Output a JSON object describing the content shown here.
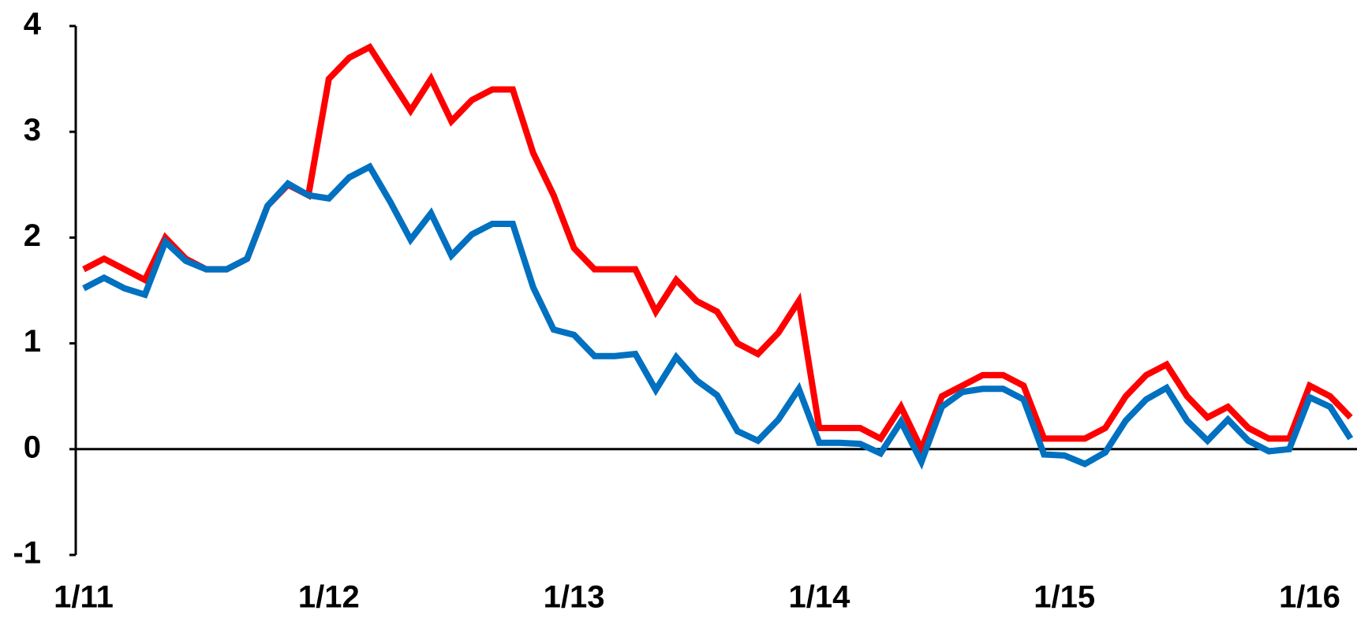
{
  "chart_data": {
    "type": "line",
    "categories": [
      "1/11",
      null,
      null,
      null,
      null,
      null,
      null,
      null,
      null,
      null,
      null,
      null,
      "1/12",
      null,
      null,
      null,
      null,
      null,
      null,
      null,
      null,
      null,
      null,
      null,
      "1/13",
      null,
      null,
      null,
      null,
      null,
      null,
      null,
      null,
      null,
      null,
      null,
      "1/14",
      null,
      null,
      null,
      null,
      null,
      null,
      null,
      null,
      null,
      null,
      null,
      "1/15",
      null,
      null,
      null,
      null,
      null,
      null,
      null,
      null,
      null,
      null,
      null,
      "1/16",
      null,
      null
    ],
    "series": [
      {
        "color": "#ff0000",
        "values": [
          1.7,
          1.8,
          1.7,
          1.6,
          2.0,
          1.8,
          1.7,
          1.7,
          1.8,
          2.3,
          2.5,
          2.4,
          3.5,
          3.7,
          3.8,
          3.5,
          3.2,
          3.5,
          3.1,
          3.3,
          3.4,
          3.4,
          2.8,
          2.4,
          1.9,
          1.7,
          1.7,
          1.7,
          1.3,
          1.6,
          1.4,
          1.3,
          1.0,
          0.9,
          1.1,
          1.4,
          0.2,
          0.2,
          0.2,
          0.1,
          0.4,
          0.0,
          0.5,
          0.6,
          0.7,
          0.7,
          0.6,
          0.1,
          0.1,
          0.1,
          0.2,
          0.5,
          0.7,
          0.8,
          0.5,
          0.3,
          0.4,
          0.2,
          0.1,
          0.1,
          0.6,
          0.5,
          0.3
        ]
      },
      {
        "color": "#0070c0",
        "values": [
          1.52,
          1.62,
          1.52,
          1.46,
          1.96,
          1.78,
          1.7,
          1.7,
          1.8,
          2.3,
          2.51,
          2.4,
          2.37,
          2.57,
          2.67,
          2.34,
          1.98,
          2.23,
          1.83,
          2.03,
          2.13,
          2.13,
          1.53,
          1.13,
          1.08,
          0.88,
          0.88,
          0.9,
          0.56,
          0.87,
          0.65,
          0.51,
          0.17,
          0.08,
          0.28,
          0.57,
          0.06,
          0.06,
          0.05,
          -0.04,
          0.26,
          -0.12,
          0.4,
          0.54,
          0.57,
          0.57,
          0.47,
          -0.05,
          -0.06,
          -0.14,
          -0.03,
          0.27,
          0.47,
          0.58,
          0.27,
          0.08,
          0.28,
          0.08,
          -0.02,
          0.0,
          0.49,
          0.4,
          0.1
        ]
      }
    ],
    "ylim": [
      -1,
      4
    ],
    "yticks": [
      -1,
      0,
      1,
      2,
      3,
      4
    ]
  }
}
